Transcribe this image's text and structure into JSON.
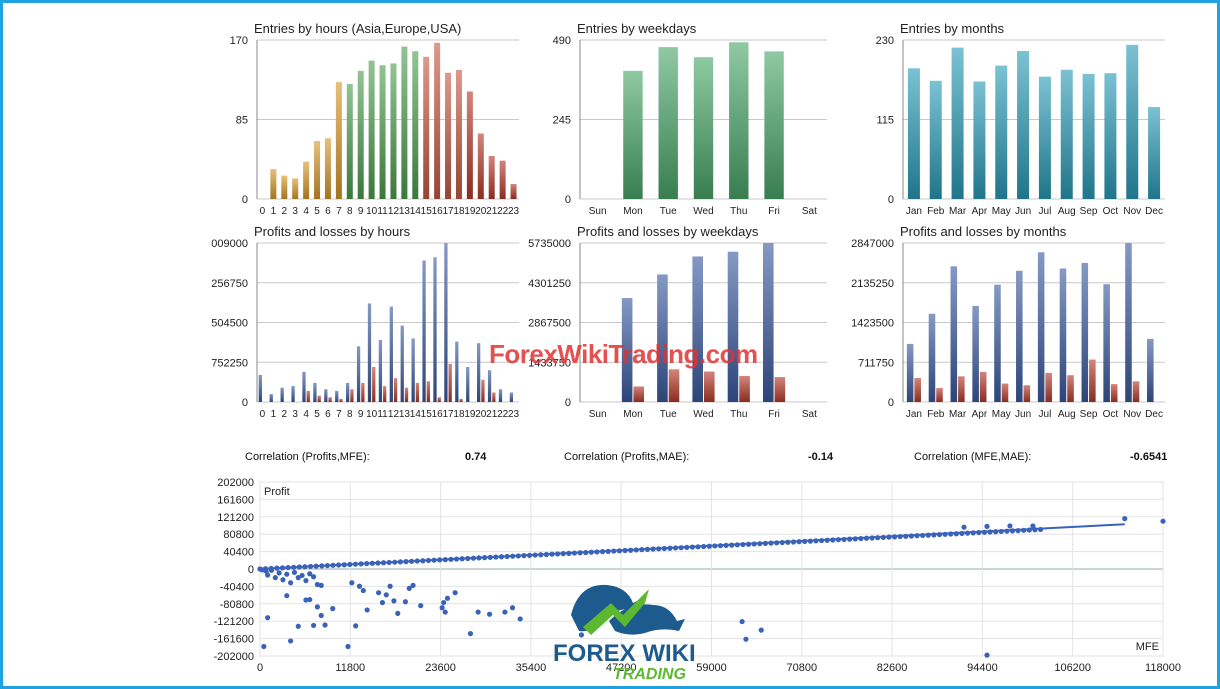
{
  "chart_data": [
    {
      "id": "c1",
      "type": "bar",
      "title": "Entries by hours (Asia,Europe,USA)",
      "categories": [
        "0",
        "1",
        "2",
        "3",
        "4",
        "5",
        "6",
        "7",
        "8",
        "9",
        "10",
        "11",
        "12",
        "13",
        "14",
        "15",
        "16",
        "17",
        "18",
        "19",
        "20",
        "21",
        "22",
        "23"
      ],
      "values": [
        0,
        32,
        25,
        22,
        40,
        62,
        65,
        125,
        123,
        137,
        148,
        143,
        145,
        163,
        158,
        152,
        167,
        135,
        138,
        115,
        70,
        46,
        41,
        16
      ],
      "ylim": [
        0,
        170
      ],
      "yticks": [
        "0",
        "85",
        "170"
      ],
      "bar_colors": [
        "#d99a2a",
        "#d99a2a",
        "#d99a2a",
        "#d99a2a",
        "#d99a2a",
        "#d99a2a",
        "#d99a2a",
        "#d99a2a",
        "#4fa04f",
        "#4fa04f",
        "#4fa04f",
        "#4fa04f",
        "#4fa04f",
        "#4fa04f",
        "#4fa04f",
        "#c85a44",
        "#c85a44",
        "#c85a44",
        "#c85a44",
        "#b83a2a",
        "#b83a2a",
        "#b83a2a",
        "#b83a2a",
        "#b83a2a"
      ]
    },
    {
      "id": "c2",
      "type": "bar",
      "title": "Entries by weekdays",
      "categories": [
        "Sun",
        "Mon",
        "Tue",
        "Wed",
        "Thu",
        "Fri",
        "Sat"
      ],
      "values": [
        0,
        395,
        468,
        437,
        483,
        455,
        0
      ],
      "ylim": [
        0,
        490
      ],
      "yticks": [
        "0",
        "245",
        "490"
      ],
      "color": "#4aa86a"
    },
    {
      "id": "c3",
      "type": "bar",
      "title": "Entries by months",
      "categories": [
        "Jan",
        "Feb",
        "Mar",
        "Apr",
        "May",
        "Jun",
        "Jul",
        "Aug",
        "Sep",
        "Oct",
        "Nov",
        "Dec"
      ],
      "values": [
        189,
        171,
        219,
        170,
        193,
        214,
        177,
        187,
        181,
        182,
        223,
        133
      ],
      "ylim": [
        0,
        230
      ],
      "yticks": [
        "0",
        "115",
        "230"
      ],
      "color": "#2a9cb8"
    },
    {
      "id": "c4",
      "type": "bar",
      "title": "Profits and losses by hours",
      "categories": [
        "0",
        "1",
        "2",
        "3",
        "4",
        "5",
        "6",
        "7",
        "8",
        "9",
        "10",
        "11",
        "12",
        "13",
        "14",
        "15",
        "16",
        "17",
        "18",
        "19",
        "20",
        "21",
        "22",
        "23"
      ],
      "yticks": [
        "0",
        "752250",
        "504500",
        "256750",
        "009000"
      ],
      "ylim": [
        0,
        100
      ],
      "series": [
        {
          "color": "#3a5aa0",
          "values": [
            17,
            5,
            9,
            10,
            19,
            12,
            8,
            7,
            12,
            35,
            62,
            39,
            60,
            48,
            40,
            89,
            91,
            100,
            38,
            22,
            37,
            20,
            8,
            6
          ]
        },
        {
          "color": "#b83a2a",
          "values": [
            0,
            0,
            0,
            0,
            7,
            4,
            3,
            2,
            8,
            12,
            22,
            10,
            15,
            9,
            12,
            13,
            3,
            24,
            2,
            0,
            14,
            6,
            0,
            0
          ]
        }
      ]
    },
    {
      "id": "c5",
      "type": "bar",
      "title": "Profits and losses by weekdays",
      "categories": [
        "Sun",
        "Mon",
        "Tue",
        "Wed",
        "Thu",
        "Fri",
        "Sat"
      ],
      "yticks": [
        "0",
        "1433750",
        "2867500",
        "4301250",
        "5735000"
      ],
      "ylim": [
        0,
        5735000
      ],
      "series": [
        {
          "color": "#3a5aa0",
          "values": [
            0,
            3750000,
            4600000,
            5250000,
            5420000,
            5735000,
            0
          ]
        },
        {
          "color": "#b83a2a",
          "values": [
            0,
            560000,
            1180000,
            1100000,
            940000,
            900000,
            0
          ]
        }
      ]
    },
    {
      "id": "c6",
      "type": "bar",
      "title": "Profits and losses by months",
      "categories": [
        "Jan",
        "Feb",
        "Mar",
        "Apr",
        "May",
        "Jun",
        "Jul",
        "Aug",
        "Sep",
        "Oct",
        "Nov",
        "Dec"
      ],
      "yticks": [
        "0",
        "711750",
        "1423500",
        "2135250",
        "2847000"
      ],
      "ylim": [
        0,
        2847000
      ],
      "series": [
        {
          "color": "#3a5aa0",
          "values": [
            1040000,
            1580000,
            2430000,
            1720000,
            2100000,
            2350000,
            2680000,
            2390000,
            2490000,
            2110000,
            2847000,
            1130000
          ]
        },
        {
          "color": "#b83a2a",
          "values": [
            430000,
            250000,
            460000,
            540000,
            330000,
            300000,
            520000,
            480000,
            760000,
            320000,
            370000,
            0
          ]
        }
      ]
    },
    {
      "id": "c7",
      "type": "scatter",
      "ylabel": "Profit",
      "xlabel": "MFE",
      "xlim": [
        0,
        118000
      ],
      "ylim": [
        -202000,
        202000
      ],
      "xticks": [
        0,
        11800,
        23600,
        35400,
        47200,
        59000,
        70800,
        82600,
        94400,
        106200,
        118000
      ],
      "yticks": [
        202000,
        161600,
        121200,
        80800,
        40400,
        0,
        -40400,
        -80800,
        -121200,
        -161600,
        -202000
      ],
      "trend": {
        "x": [
          0,
          113000
        ],
        "y": [
          0,
          104000
        ]
      },
      "diagonal_points": {
        "from": 0,
        "to": 102000,
        "count": 140,
        "slope": 0.9
      },
      "points": [
        [
          118000,
          111000
        ],
        [
          113000,
          117000
        ],
        [
          92000,
          97000
        ],
        [
          95000,
          99000
        ],
        [
          98000,
          100000
        ],
        [
          101000,
          100000
        ],
        [
          300,
          -2000
        ],
        [
          800,
          -5000
        ],
        [
          1500,
          -3000
        ],
        [
          2500,
          -9000
        ],
        [
          3500,
          -12000
        ],
        [
          4500,
          -8000
        ],
        [
          5500,
          -15000
        ],
        [
          6500,
          -11000
        ],
        [
          1000,
          -14000
        ],
        [
          2000,
          -20000
        ],
        [
          3000,
          -25000
        ],
        [
          4000,
          -32000
        ],
        [
          5000,
          -20000
        ],
        [
          6000,
          -27000
        ],
        [
          7000,
          -18000
        ],
        [
          7500,
          -36000
        ],
        [
          8000,
          -38000
        ],
        [
          3500,
          -62000
        ],
        [
          6000,
          -72000
        ],
        [
          6500,
          -71000
        ],
        [
          7500,
          -88000
        ],
        [
          8000,
          -108000
        ],
        [
          8500,
          -130000
        ],
        [
          9500,
          -92000
        ],
        [
          7000,
          -131000
        ],
        [
          5000,
          -133000
        ],
        [
          4000,
          -167000
        ],
        [
          1000,
          -113000
        ],
        [
          500,
          -180000
        ],
        [
          12000,
          -32000
        ],
        [
          13000,
          -40000
        ],
        [
          13500,
          -50000
        ],
        [
          14000,
          -95000
        ],
        [
          15500,
          -55000
        ],
        [
          16000,
          -78000
        ],
        [
          16500,
          -60000
        ],
        [
          17000,
          -40000
        ],
        [
          17500,
          -74000
        ],
        [
          18000,
          -103000
        ],
        [
          19000,
          -76000
        ],
        [
          19500,
          -45000
        ],
        [
          20000,
          -38000
        ],
        [
          21000,
          -85000
        ],
        [
          12500,
          -132000
        ],
        [
          11500,
          -180000
        ],
        [
          24000,
          -78000
        ],
        [
          24500,
          -68000
        ],
        [
          25500,
          -55000
        ],
        [
          23800,
          -90000
        ],
        [
          24200,
          -100000
        ],
        [
          27500,
          -150000
        ],
        [
          28500,
          -100000
        ],
        [
          30000,
          -105000
        ],
        [
          32000,
          -100000
        ],
        [
          33000,
          -90000
        ],
        [
          34000,
          -116000
        ],
        [
          42000,
          -153000
        ],
        [
          63000,
          -122000
        ],
        [
          63500,
          -163000
        ],
        [
          65500,
          -142000
        ],
        [
          95000,
          -200000
        ]
      ]
    }
  ],
  "correlations": [
    {
      "label": "Correlation (Profits,MFE):",
      "value": "0.74"
    },
    {
      "label": "Correlation (Profits,MAE):",
      "value": "-0.14"
    },
    {
      "label": "Correlation (MFE,MAE):",
      "value": "-0.6541"
    }
  ],
  "watermark": "ForexWikiTrading.com",
  "logo": {
    "line1": "FOREX WIKI",
    "line2": "TRADING",
    "icon": "bull-bear-icon"
  }
}
